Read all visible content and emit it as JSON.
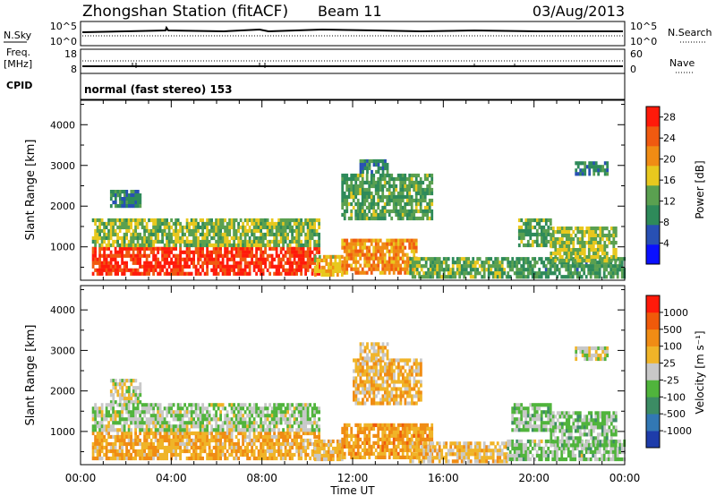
{
  "header": {
    "title": "Zhongshan Station (fitACF)",
    "beam": "Beam 11",
    "date": "03/Aug/2013"
  },
  "params": {
    "nsky_label": "N.Sky",
    "nsky_ticks": [
      "10^5",
      "10^0"
    ],
    "nsearch_label": "N.Search",
    "nsearch_ticks": [
      "10^5",
      "10^0"
    ],
    "freq_label_line1": "Freq.",
    "freq_label_line2": "[MHz]",
    "freq_ticks": [
      "18",
      "8"
    ],
    "nave_label": "Nave",
    "nave_ticks": [
      "60",
      "0"
    ],
    "cpid_label": "CPID",
    "cpid_text": "normal (fast stereo) 153"
  },
  "axes": {
    "x_label": "Time UT",
    "x_ticks": [
      "00:00",
      "04:00",
      "08:00",
      "12:00",
      "16:00",
      "20:00",
      "00:00"
    ],
    "y_label": "Slant Range [km]",
    "y_ticks": [
      "1000",
      "2000",
      "3000",
      "4000"
    ]
  },
  "colorbars": {
    "power": {
      "label": "Power [dB]",
      "ticks": [
        "4",
        "8",
        "12",
        "16",
        "20",
        "24",
        "28"
      ],
      "colors": [
        "#0a10ff",
        "#2850b4",
        "#2e8a5a",
        "#5aa050",
        "#e8c81e",
        "#f08c14",
        "#f05a10",
        "#ff1a0a"
      ]
    },
    "velocity": {
      "label": "Velocity [m s⁻¹]",
      "ticks": [
        "1000",
        "500",
        "100",
        "25",
        "-25",
        "-100",
        "-500",
        "-1000"
      ],
      "colors": [
        "#1e3caa",
        "#3278b4",
        "#3c8c64",
        "#50b43c",
        "#c8c8c8",
        "#f0b428",
        "#f08c14",
        "#f05a0a",
        "#ff1a0a"
      ]
    }
  },
  "chart_data": [
    {
      "type": "heatmap",
      "title": "Power [dB]",
      "xlabel": "Time UT",
      "ylabel": "Slant Range [km]",
      "xlim": [
        "00:00",
        "24:00"
      ],
      "ylim": [
        180,
        4600
      ],
      "clim": [
        0,
        30
      ],
      "regions": [
        {
          "t": [
            1.3,
            2.6
          ],
          "r": [
            2000,
            2400
          ],
          "v": 9
        },
        {
          "t": [
            0.5,
            10.5
          ],
          "r": [
            350,
            1000
          ],
          "v": 27
        },
        {
          "t": [
            0.5,
            10.5
          ],
          "r": [
            1000,
            1700
          ],
          "v": 14
        },
        {
          "t": [
            10.3,
            11.5
          ],
          "r": [
            300,
            800
          ],
          "v": 18
        },
        {
          "t": [
            11.5,
            14.8
          ],
          "r": [
            400,
            1200
          ],
          "v": 21
        },
        {
          "t": [
            11.5,
            15.5
          ],
          "r": [
            1700,
            2800
          ],
          "v": 12
        },
        {
          "t": [
            12.3,
            13.5
          ],
          "r": [
            2800,
            3150
          ],
          "v": 9
        },
        {
          "t": [
            14.5,
            18.8
          ],
          "r": [
            300,
            750
          ],
          "v": 13
        },
        {
          "t": [
            18.8,
            24.0
          ],
          "r": [
            300,
            750
          ],
          "v": 11
        },
        {
          "t": [
            19.3,
            20.7
          ],
          "r": [
            1000,
            1700
          ],
          "v": 12
        },
        {
          "t": [
            20.7,
            23.6
          ],
          "r": [
            700,
            1500
          ],
          "v": 15
        },
        {
          "t": [
            21.8,
            23.2
          ],
          "r": [
            2750,
            3100
          ],
          "v": 9
        }
      ]
    },
    {
      "type": "heatmap",
      "title": "Velocity [m s⁻¹]",
      "xlabel": "Time UT",
      "ylabel": "Slant Range [km]",
      "xlim": [
        "00:00",
        "24:00"
      ],
      "ylim": [
        180,
        4600
      ],
      "clim": [
        -1000,
        1000
      ],
      "regions": [
        {
          "t": [
            1.3,
            2.6
          ],
          "r": [
            1700,
            2300
          ],
          "v": 0
        },
        {
          "t": [
            0.5,
            10.5
          ],
          "r": [
            350,
            1000
          ],
          "v": -300
        },
        {
          "t": [
            0.5,
            10.5
          ],
          "r": [
            1000,
            1700
          ],
          "v": 80
        },
        {
          "t": [
            10.3,
            11.5
          ],
          "r": [
            300,
            800
          ],
          "v": -200
        },
        {
          "t": [
            11.5,
            15.5
          ],
          "r": [
            400,
            1200
          ],
          "v": -350
        },
        {
          "t": [
            12.0,
            15.0
          ],
          "r": [
            1700,
            2800
          ],
          "v": -250
        },
        {
          "t": [
            12.3,
            13.5
          ],
          "r": [
            2800,
            3200
          ],
          "v": -150
        },
        {
          "t": [
            14.5,
            18.8
          ],
          "r": [
            300,
            750
          ],
          "v": -200
        },
        {
          "t": [
            18.8,
            24.0
          ],
          "r": [
            300,
            800
          ],
          "v": 120
        },
        {
          "t": [
            19.0,
            20.7
          ],
          "r": [
            1000,
            1700
          ],
          "v": 150
        },
        {
          "t": [
            20.7,
            23.6
          ],
          "r": [
            700,
            1500
          ],
          "v": 150
        },
        {
          "t": [
            21.8,
            23.2
          ],
          "r": [
            2800,
            3100
          ],
          "v": 0
        }
      ]
    }
  ]
}
